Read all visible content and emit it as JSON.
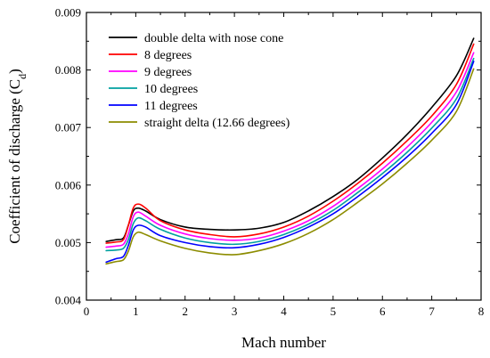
{
  "chart_data": {
    "type": "line",
    "xlabel": "Mach number",
    "ylabel_main": "Coefficient of discharge (C",
    "ylabel_sub": "d",
    "ylabel_close": ")",
    "xlim": [
      0,
      8
    ],
    "ylim": [
      0.004,
      0.009
    ],
    "xticks": [
      0,
      1,
      2,
      3,
      4,
      5,
      6,
      7,
      8
    ],
    "yticks": [
      0.004,
      0.005,
      0.006,
      0.007,
      0.008,
      0.009
    ],
    "ytick_labels": [
      "0.004",
      "0.005",
      "0.006",
      "0.007",
      "0.008",
      "0.009"
    ],
    "grid": false,
    "legend_position": "top-left",
    "series": [
      {
        "name": "double delta with nose cone",
        "color": "#000000",
        "x": [
          0.4,
          0.6,
          0.75,
          0.85,
          0.95,
          1.05,
          1.2,
          1.5,
          2.0,
          2.5,
          3.0,
          3.5,
          4.0,
          4.5,
          5.0,
          5.5,
          6.0,
          6.5,
          7.0,
          7.5,
          7.85
        ],
        "y": [
          0.00502,
          0.00505,
          0.00508,
          0.0053,
          0.00555,
          0.0056,
          0.00555,
          0.0054,
          0.00527,
          0.00523,
          0.00522,
          0.00525,
          0.00535,
          0.00555,
          0.0058,
          0.0061,
          0.00647,
          0.00688,
          0.00735,
          0.0079,
          0.00855
        ]
      },
      {
        "name": "8 degrees",
        "color": "#ff0000",
        "x": [
          0.4,
          0.6,
          0.75,
          0.85,
          0.95,
          1.05,
          1.2,
          1.5,
          2.0,
          2.5,
          3.0,
          3.5,
          4.0,
          4.5,
          5.0,
          5.5,
          6.0,
          6.5,
          7.0,
          7.5,
          7.85
        ],
        "y": [
          0.00499,
          0.00501,
          0.00505,
          0.0053,
          0.0056,
          0.00567,
          0.0056,
          0.00538,
          0.00522,
          0.00514,
          0.0051,
          0.00515,
          0.00527,
          0.00546,
          0.00572,
          0.00603,
          0.00638,
          0.00677,
          0.0072,
          0.00775,
          0.00845
        ]
      },
      {
        "name": "9 degrees",
        "color": "#ff00ff",
        "x": [
          0.4,
          0.6,
          0.75,
          0.85,
          0.95,
          1.05,
          1.2,
          1.5,
          2.0,
          2.5,
          3.0,
          3.5,
          4.0,
          4.5,
          5.0,
          5.5,
          6.0,
          6.5,
          7.0,
          7.5,
          7.85
        ],
        "y": [
          0.00492,
          0.00494,
          0.00497,
          0.00515,
          0.00545,
          0.00553,
          0.00546,
          0.0053,
          0.00515,
          0.00507,
          0.00504,
          0.00508,
          0.0052,
          0.00538,
          0.00563,
          0.00594,
          0.00628,
          0.00666,
          0.00709,
          0.00762,
          0.0083
        ]
      },
      {
        "name": "10 degrees",
        "color": "#00a0a0",
        "x": [
          0.4,
          0.6,
          0.75,
          0.85,
          0.95,
          1.05,
          1.2,
          1.5,
          2.0,
          2.5,
          3.0,
          3.5,
          4.0,
          4.5,
          5.0,
          5.5,
          6.0,
          6.5,
          7.0,
          7.5,
          7.85
        ],
        "y": [
          0.00486,
          0.00487,
          0.0049,
          0.00505,
          0.00533,
          0.00543,
          0.00538,
          0.00523,
          0.00508,
          0.005,
          0.00497,
          0.00502,
          0.00514,
          0.00532,
          0.00556,
          0.00587,
          0.0062,
          0.00657,
          0.00699,
          0.0075,
          0.0082
        ]
      },
      {
        "name": "11 degrees",
        "color": "#0000ff",
        "x": [
          0.4,
          0.6,
          0.75,
          0.85,
          0.95,
          1.05,
          1.2,
          1.5,
          2.0,
          2.5,
          3.0,
          3.5,
          4.0,
          4.5,
          5.0,
          5.5,
          6.0,
          6.5,
          7.0,
          7.5,
          7.85
        ],
        "y": [
          0.00466,
          0.00472,
          0.00476,
          0.00495,
          0.00522,
          0.0053,
          0.00527,
          0.00512,
          0.005,
          0.00493,
          0.00491,
          0.00497,
          0.00509,
          0.00527,
          0.0055,
          0.0058,
          0.00613,
          0.00649,
          0.0069,
          0.0074,
          0.00815
        ]
      },
      {
        "name": "straight delta (12.66 degrees)",
        "color": "#8c8c00",
        "x": [
          0.4,
          0.6,
          0.75,
          0.85,
          0.95,
          1.05,
          1.2,
          1.5,
          2.0,
          2.5,
          3.0,
          3.5,
          4.0,
          4.5,
          5.0,
          5.5,
          6.0,
          6.5,
          7.0,
          7.5,
          7.85
        ],
        "y": [
          0.00463,
          0.00467,
          0.0047,
          0.00485,
          0.0051,
          0.00518,
          0.00514,
          0.00503,
          0.0049,
          0.00482,
          0.00479,
          0.00486,
          0.00498,
          0.00516,
          0.0054,
          0.0057,
          0.00602,
          0.00638,
          0.00678,
          0.00728,
          0.00802
        ]
      }
    ]
  }
}
